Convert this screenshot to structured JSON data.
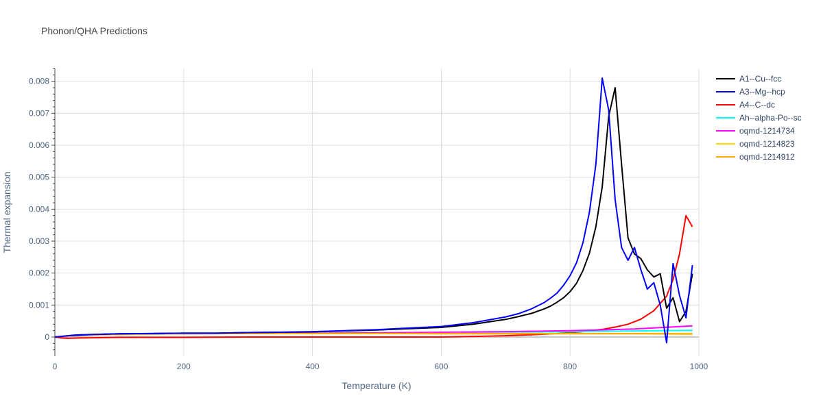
{
  "chart_data": {
    "type": "line",
    "title": "Phonon/QHA Predictions",
    "xlabel": "Temperature (K)",
    "ylabel": "Thermal expansion",
    "xlim": [
      0,
      1000
    ],
    "ylim": [
      -0.0006,
      0.0084
    ],
    "x_ticks": [
      0,
      200,
      400,
      600,
      800,
      1000
    ],
    "x_tick_labels": [
      "0",
      "200",
      "400",
      "600",
      "800",
      "1000"
    ],
    "y_ticks": [
      0,
      0.001,
      0.002,
      0.003,
      0.004,
      0.005,
      0.006,
      0.007,
      0.008
    ],
    "y_tick_labels": [
      "0",
      "0.001",
      "0.002",
      "0.003",
      "0.004",
      "0.005",
      "0.006",
      "0.007",
      "0.008"
    ],
    "grid": true,
    "legend_position": "top-right",
    "series": [
      {
        "name": "A1--Cu--fcc",
        "color": "#000000",
        "x": [
          0,
          10,
          20,
          30,
          40,
          60,
          80,
          100,
          150,
          200,
          250,
          300,
          350,
          400,
          450,
          500,
          550,
          600,
          650,
          700,
          720,
          740,
          760,
          770,
          780,
          790,
          800,
          810,
          820,
          830,
          840,
          850,
          860,
          870,
          880,
          890,
          900,
          910,
          920,
          930,
          940,
          950,
          960,
          970,
          980,
          990
        ],
        "y": [
          0,
          2e-05,
          4e-05,
          6e-05,
          7e-05,
          8e-05,
          9e-05,
          0.0001,
          0.00011,
          0.00012,
          0.00012,
          0.00014,
          0.00015,
          0.00016,
          0.00019,
          0.00022,
          0.00026,
          0.0003,
          0.0004,
          0.00055,
          0.00064,
          0.00074,
          0.00088,
          0.00097,
          0.00109,
          0.00123,
          0.00142,
          0.00168,
          0.00208,
          0.00262,
          0.00345,
          0.0047,
          0.0069,
          0.0078,
          0.0054,
          0.0031,
          0.0026,
          0.00245,
          0.0021,
          0.00188,
          0.00198,
          0.0009,
          0.00123,
          0.00048,
          0.0008,
          0.00198
        ]
      },
      {
        "name": "A3--Mg--hcp",
        "color": "#0000ff",
        "x": [
          0,
          10,
          20,
          30,
          40,
          60,
          80,
          100,
          150,
          200,
          250,
          300,
          350,
          400,
          450,
          500,
          550,
          600,
          650,
          700,
          720,
          740,
          760,
          770,
          780,
          790,
          800,
          810,
          820,
          830,
          840,
          850,
          860,
          870,
          880,
          890,
          900,
          910,
          920,
          930,
          940,
          950,
          960,
          970,
          980,
          990
        ],
        "y": [
          0,
          2e-05,
          4e-05,
          5e-05,
          6e-05,
          8e-05,
          9e-05,
          0.0001,
          0.00011,
          0.00012,
          0.00012,
          0.00014,
          0.00015,
          0.00017,
          0.0002,
          0.00023,
          0.00028,
          0.00033,
          0.00045,
          0.00063,
          0.00073,
          0.00088,
          0.00108,
          0.00122,
          0.00138,
          0.00162,
          0.00192,
          0.00232,
          0.00295,
          0.0039,
          0.0054,
          0.0081,
          0.0071,
          0.0043,
          0.0028,
          0.0024,
          0.0028,
          0.0021,
          0.0015,
          0.0017,
          0.001,
          -0.00018,
          0.0023,
          0.0013,
          0.0006,
          0.00225
        ]
      },
      {
        "name": "A4--C--dc",
        "color": "#ff0000",
        "x": [
          0,
          10,
          20,
          40,
          100,
          200,
          300,
          400,
          500,
          600,
          650,
          700,
          740,
          780,
          820,
          850,
          870,
          890,
          910,
          930,
          950,
          960,
          970,
          980,
          990
        ],
        "y": [
          0,
          -3e-05,
          -4e-05,
          -3e-05,
          -1e-05,
          -1e-05,
          0,
          0,
          0,
          0,
          2e-05,
          4e-05,
          7e-05,
          0.00011,
          0.00017,
          0.00024,
          0.00031,
          0.0004,
          0.00056,
          0.00082,
          0.00128,
          0.0018,
          0.0026,
          0.0038,
          0.00345
        ]
      },
      {
        "name": "Ah--alpha-Po--sc",
        "color": "#00ffff",
        "x": [
          0,
          20,
          50,
          100,
          200,
          300,
          400,
          500,
          600,
          700,
          800,
          900,
          990
        ],
        "y": [
          0,
          3e-05,
          6e-05,
          8e-05,
          0.0001,
          0.00011,
          0.00012,
          0.00013,
          0.00014,
          0.00015,
          0.00017,
          0.00019,
          0.00021
        ]
      },
      {
        "name": "oqmd-1214734",
        "color": "#ff00ff",
        "x": [
          0,
          20,
          50,
          100,
          200,
          300,
          400,
          500,
          600,
          700,
          800,
          900,
          990
        ],
        "y": [
          0,
          3e-05,
          6e-05,
          8e-05,
          0.0001,
          0.00011,
          0.00012,
          0.00013,
          0.00015,
          0.00017,
          0.0002,
          0.00025,
          0.00035
        ]
      },
      {
        "name": "oqmd-1214823",
        "color": "#ffd700",
        "x": [
          0,
          20,
          50,
          100,
          200,
          300,
          400,
          500,
          600,
          700,
          800,
          900,
          990
        ],
        "y": [
          0,
          3e-05,
          6e-05,
          8e-05,
          0.0001,
          0.00011,
          0.00011,
          0.00011,
          0.00011,
          0.00011,
          0.00011,
          0.00011,
          0.00011
        ]
      },
      {
        "name": "oqmd-1214912",
        "color": "#ffa500",
        "x": [
          0,
          20,
          50,
          100,
          200,
          300,
          400,
          500,
          600,
          700,
          800,
          900,
          990
        ],
        "y": [
          0,
          4e-05,
          7e-05,
          9e-05,
          0.00011,
          0.00011,
          0.00011,
          0.00011,
          0.0001,
          0.0001,
          0.0001,
          0.0001,
          9e-05
        ]
      }
    ]
  }
}
